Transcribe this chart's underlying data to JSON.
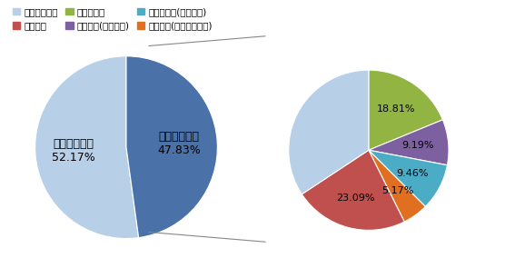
{
  "pie1_labels": [
    "传统人工洗车\n52.17%",
    "自动电脑洗车\n47.83%"
  ],
  "pie1_values": [
    52.17,
    47.83
  ],
  "pie1_colors": [
    "#b8cfe8",
    "#4a72a8"
  ],
  "pie2_values": [
    18.81,
    9.19,
    9.46,
    5.17,
    23.09,
    34.28
  ],
  "pie2_colors": [
    "#92b443",
    "#7d60a0",
    "#4bacc6",
    "#e07020",
    "#c0504d",
    "#b8cfe8"
  ],
  "pie2_pct_labels": [
    "18.81%",
    "9.19%",
    "9.46%",
    "5.17%",
    "23.09%",
    ""
  ],
  "pie2_startangle": 90,
  "legend_labels": [
    "传统人工洗车",
    "手工洗车",
    "高压枪洗车",
    "蒸汽洗车(微水洗车)",
    "循环水洗车(中水洗车)",
    "无水洗车(化学制品洗车)"
  ],
  "legend_colors": [
    "#b8cfe8",
    "#c0504d",
    "#92b443",
    "#7d60a0",
    "#4bacc6",
    "#e07020"
  ],
  "bg_color": "#ffffff",
  "text_color": "#000000",
  "label_fontsize": 9,
  "pct_fontsize": 8,
  "legend_fontsize": 7.5
}
